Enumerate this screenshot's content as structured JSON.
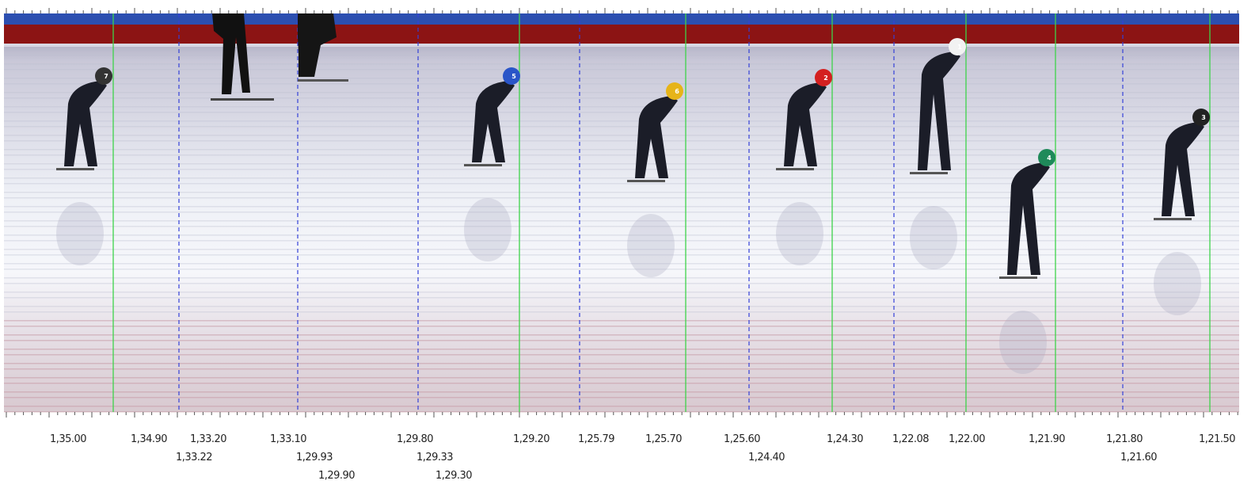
{
  "labels": [
    {
      "text": "1,35.00"
    },
    {
      "text": "1,34.90"
    },
    {
      "text": "1,33.20"
    },
    {
      "text": "1,33.22"
    },
    {
      "text": "1,33.10"
    },
    {
      "text": "1,29.93"
    },
    {
      "text": "1,29.90"
    },
    {
      "text": "1,29.80"
    },
    {
      "text": "1,29.33"
    },
    {
      "text": "1,29.30"
    },
    {
      "text": "1,29.20"
    },
    {
      "text": "1,25.79"
    },
    {
      "text": "1,25.70"
    },
    {
      "text": "1,25.60"
    },
    {
      "text": "1,24.40"
    },
    {
      "text": "1,24.30"
    },
    {
      "text": "1,22.08"
    },
    {
      "text": "1,22.00"
    },
    {
      "text": "1,21.90"
    },
    {
      "text": "1,21.80"
    },
    {
      "text": "1,21.60"
    },
    {
      "text": "1,21.50"
    }
  ],
  "skaters": [
    {
      "bib": "7"
    },
    {
      "bib": "5"
    },
    {
      "bib": "6"
    },
    {
      "bib": "2"
    },
    {
      "bib": "1"
    },
    {
      "bib": "4"
    },
    {
      "bib": "3"
    }
  ]
}
